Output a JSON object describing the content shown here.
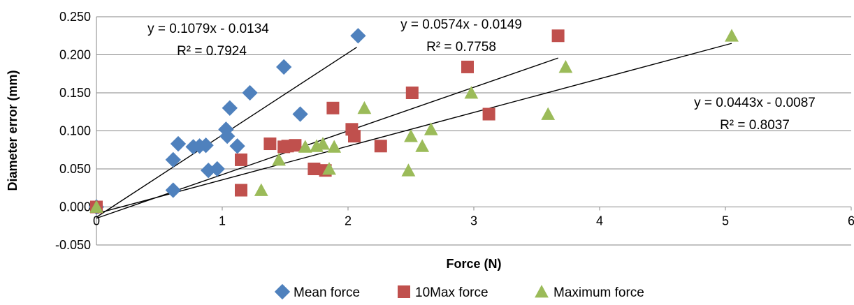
{
  "chart_data": {
    "type": "scatter",
    "title": "",
    "xlabel": "Force (N)",
    "ylabel": "Diameter error (mm)",
    "xlim": [
      0,
      6
    ],
    "ylim": [
      -0.05,
      0.25
    ],
    "x_ticks": [
      "0",
      "1",
      "2",
      "3",
      "4",
      "5",
      "6"
    ],
    "y_ticks": [
      "-0.050",
      "0.000",
      "0.050",
      "0.100",
      "0.150",
      "0.200",
      "0.250"
    ],
    "grid": "horizontal",
    "legend_position": "bottom",
    "series": [
      {
        "name": "Mean force",
        "marker": "diamond",
        "color": "#4F81BD",
        "points": [
          [
            0,
            0
          ],
          [
            0.61,
            0.022
          ],
          [
            0.61,
            0.062
          ],
          [
            0.65,
            0.083
          ],
          [
            0.77,
            0.079
          ],
          [
            0.82,
            0.08
          ],
          [
            0.87,
            0.081
          ],
          [
            0.89,
            0.048
          ],
          [
            0.96,
            0.05
          ],
          [
            1.03,
            0.102
          ],
          [
            1.04,
            0.093
          ],
          [
            1.06,
            0.13
          ],
          [
            1.12,
            0.08
          ],
          [
            1.22,
            0.15
          ],
          [
            1.49,
            0.184
          ],
          [
            1.62,
            0.122
          ],
          [
            2.08,
            0.225
          ]
        ],
        "trendline": {
          "slope": 0.1079,
          "intercept": -0.0134,
          "x_end": 2.07,
          "equation": "y = 0.1079x - 0.0134",
          "r2": "R² = 0.7924"
        }
      },
      {
        "name": "10Max force",
        "marker": "square",
        "color": "#C0504D",
        "points": [
          [
            0,
            0
          ],
          [
            1.15,
            0.022
          ],
          [
            1.15,
            0.062
          ],
          [
            1.38,
            0.083
          ],
          [
            1.49,
            0.079
          ],
          [
            1.52,
            0.08
          ],
          [
            1.58,
            0.081
          ],
          [
            1.73,
            0.05
          ],
          [
            1.82,
            0.048
          ],
          [
            1.88,
            0.13
          ],
          [
            2.03,
            0.102
          ],
          [
            2.05,
            0.093
          ],
          [
            2.26,
            0.08
          ],
          [
            2.51,
            0.15
          ],
          [
            2.95,
            0.184
          ],
          [
            3.12,
            0.122
          ],
          [
            3.67,
            0.225
          ]
        ],
        "trendline": {
          "slope": 0.0574,
          "intercept": -0.0149,
          "x_end": 3.67,
          "equation": "y = 0.0574x - 0.0149",
          "r2": "R² = 0.7758"
        }
      },
      {
        "name": "Maximum force",
        "marker": "triangle",
        "color": "#9BBB59",
        "points": [
          [
            0,
            0
          ],
          [
            1.31,
            0.022
          ],
          [
            1.45,
            0.062
          ],
          [
            1.66,
            0.079
          ],
          [
            1.75,
            0.08
          ],
          [
            1.8,
            0.083
          ],
          [
            1.85,
            0.05
          ],
          [
            1.89,
            0.079
          ],
          [
            2.13,
            0.13
          ],
          [
            2.48,
            0.048
          ],
          [
            2.5,
            0.093
          ],
          [
            2.59,
            0.08
          ],
          [
            2.66,
            0.102
          ],
          [
            2.98,
            0.15
          ],
          [
            3.59,
            0.122
          ],
          [
            3.73,
            0.184
          ],
          [
            5.05,
            0.225
          ]
        ],
        "trendline": {
          "slope": 0.0443,
          "intercept": -0.0087,
          "x_end": 5.05,
          "equation": "y = 0.0443x - 0.0087",
          "r2": "R² = 0.8037"
        }
      }
    ]
  }
}
